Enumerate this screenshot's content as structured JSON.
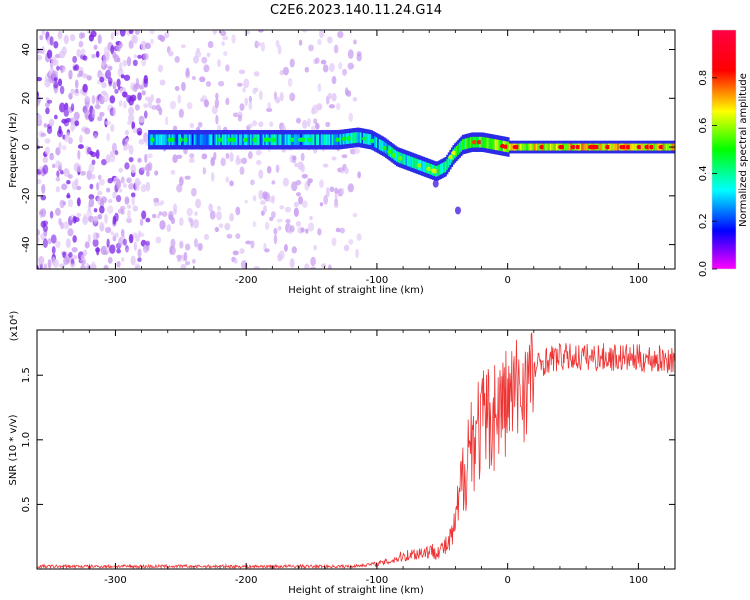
{
  "title": "C2E6.2023.140.11.24.G14",
  "chart_data": [
    {
      "type": "heatmap",
      "xlabel": "Height of straight line (km)",
      "ylabel": "Frequency (Hz)",
      "xlim": [
        -360,
        128
      ],
      "ylim": [
        -50,
        48
      ],
      "xticks": [
        -300,
        -200,
        -100,
        0,
        100
      ],
      "yticks": [
        -40,
        -20,
        0,
        20,
        40
      ],
      "colorbar": {
        "label": "Normalized spectral amplitude",
        "range": [
          0,
          1
        ],
        "ticks": [
          "0.0",
          "0.2",
          "0.4",
          "0.6",
          "0.8"
        ],
        "tick_values": [
          0,
          0.2,
          0.4,
          0.6,
          0.8
        ],
        "colormap": "hsv"
      },
      "signal_trace": {
        "x": [
          -275,
          -240,
          -200,
          -160,
          -130,
          -115,
          -105,
          -95,
          -85,
          -75,
          -65,
          -55,
          -48,
          -42,
          -35,
          -28,
          -20,
          -10,
          0,
          40,
          80,
          128
        ],
        "y": [
          3,
          3,
          3,
          3,
          3,
          4,
          3,
          0,
          -4,
          -6,
          -8,
          -10,
          -8,
          -3,
          1,
          2,
          2,
          1,
          0,
          0,
          0,
          0
        ],
        "amplitude": [
          0.45,
          0.4,
          0.45,
          0.4,
          0.45,
          0.45,
          0.4,
          0.45,
          0.5,
          0.55,
          0.55,
          0.6,
          0.55,
          0.6,
          0.7,
          0.75,
          0.8,
          0.85,
          0.9,
          0.95,
          0.95,
          0.95
        ]
      },
      "noise_region": {
        "x_range": [
          -360,
          -113
        ],
        "dense_until": -275,
        "amplitude": [
          0.02,
          0.15
        ]
      },
      "outlier_points": [
        {
          "x": -55,
          "y": -15
        },
        {
          "x": -38,
          "y": -26
        }
      ]
    },
    {
      "type": "line",
      "xlabel": "Height of straight line (km)",
      "ylabel": "SNR (10 * v/v)",
      "y_multiplier": "(x10⁴)",
      "xlim": [
        -360,
        128
      ],
      "ylim": [
        0,
        1.85
      ],
      "xticks": [
        -300,
        -200,
        -100,
        0,
        100
      ],
      "yticks": [
        0.5,
        1.0,
        1.5
      ],
      "ytick_labels": [
        "0.5",
        "1.0",
        "1.5"
      ],
      "color": "#ee3333",
      "series": [
        {
          "x": [
            -360,
            -250,
            -150,
            -120,
            -110,
            -100,
            -90,
            -80,
            -70,
            -60,
            -50,
            -45,
            -40,
            -35,
            -30,
            -25,
            -20,
            -15,
            -10,
            -5,
            0,
            5,
            10,
            15,
            20,
            25,
            30,
            40,
            60,
            80,
            100,
            128
          ],
          "values": [
            0.02,
            0.02,
            0.02,
            0.02,
            0.03,
            0.04,
            0.06,
            0.1,
            0.12,
            0.14,
            0.16,
            0.2,
            0.35,
            0.7,
            1.0,
            1.1,
            1.15,
            1.2,
            1.25,
            1.3,
            1.35,
            1.4,
            1.45,
            1.5,
            1.55,
            1.6,
            1.63,
            1.65,
            1.65,
            1.65,
            1.64,
            1.63
          ]
        }
      ]
    }
  ]
}
